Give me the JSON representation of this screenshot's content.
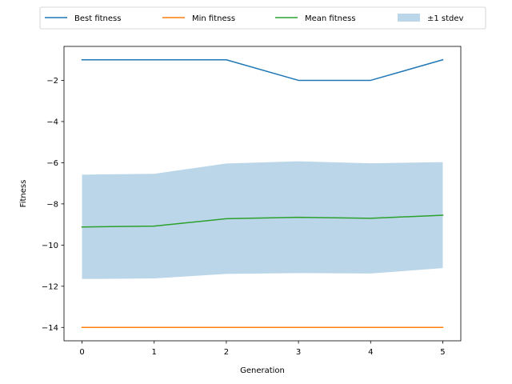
{
  "chart_data": {
    "type": "line",
    "xlabel": "Generation",
    "ylabel": "Fitness",
    "x": [
      0,
      1,
      2,
      3,
      4,
      5
    ],
    "xlim": [
      -0.25,
      5.25
    ],
    "ylim": [
      -14.65,
      -0.35
    ],
    "x_ticks": [
      0,
      1,
      2,
      3,
      4,
      5
    ],
    "y_ticks": [
      -14,
      -12,
      -10,
      -8,
      -6,
      -4,
      -2
    ],
    "y_tick_labels": [
      "−14",
      "−12",
      "−10",
      "−8",
      "−6",
      "−4",
      "−2"
    ],
    "x_tick_labels": [
      "0",
      "1",
      "2",
      "3",
      "4",
      "5"
    ],
    "grid": false,
    "legend_position": "top (above plot area)",
    "series": [
      {
        "name": "Best fitness",
        "color": "#1f77b4",
        "values": [
          -1,
          -1,
          -1,
          -2,
          -2,
          -1
        ]
      },
      {
        "name": "Min fitness",
        "color": "#ff7f0e",
        "values": [
          -14,
          -14,
          -14,
          -14,
          -14,
          -14
        ]
      },
      {
        "name": "Mean fitness",
        "color": "#2ca02c",
        "values": [
          -9.12,
          -9.08,
          -8.72,
          -8.65,
          -8.7,
          -8.55
        ]
      }
    ],
    "band": {
      "name": "±1 stdev",
      "color": "#1f77b4",
      "opacity": 0.3,
      "lower": [
        -11.65,
        -11.62,
        -11.4,
        -11.36,
        -11.38,
        -11.12
      ],
      "upper": [
        -6.58,
        -6.54,
        -6.04,
        -5.93,
        -6.03,
        -5.97
      ]
    }
  }
}
